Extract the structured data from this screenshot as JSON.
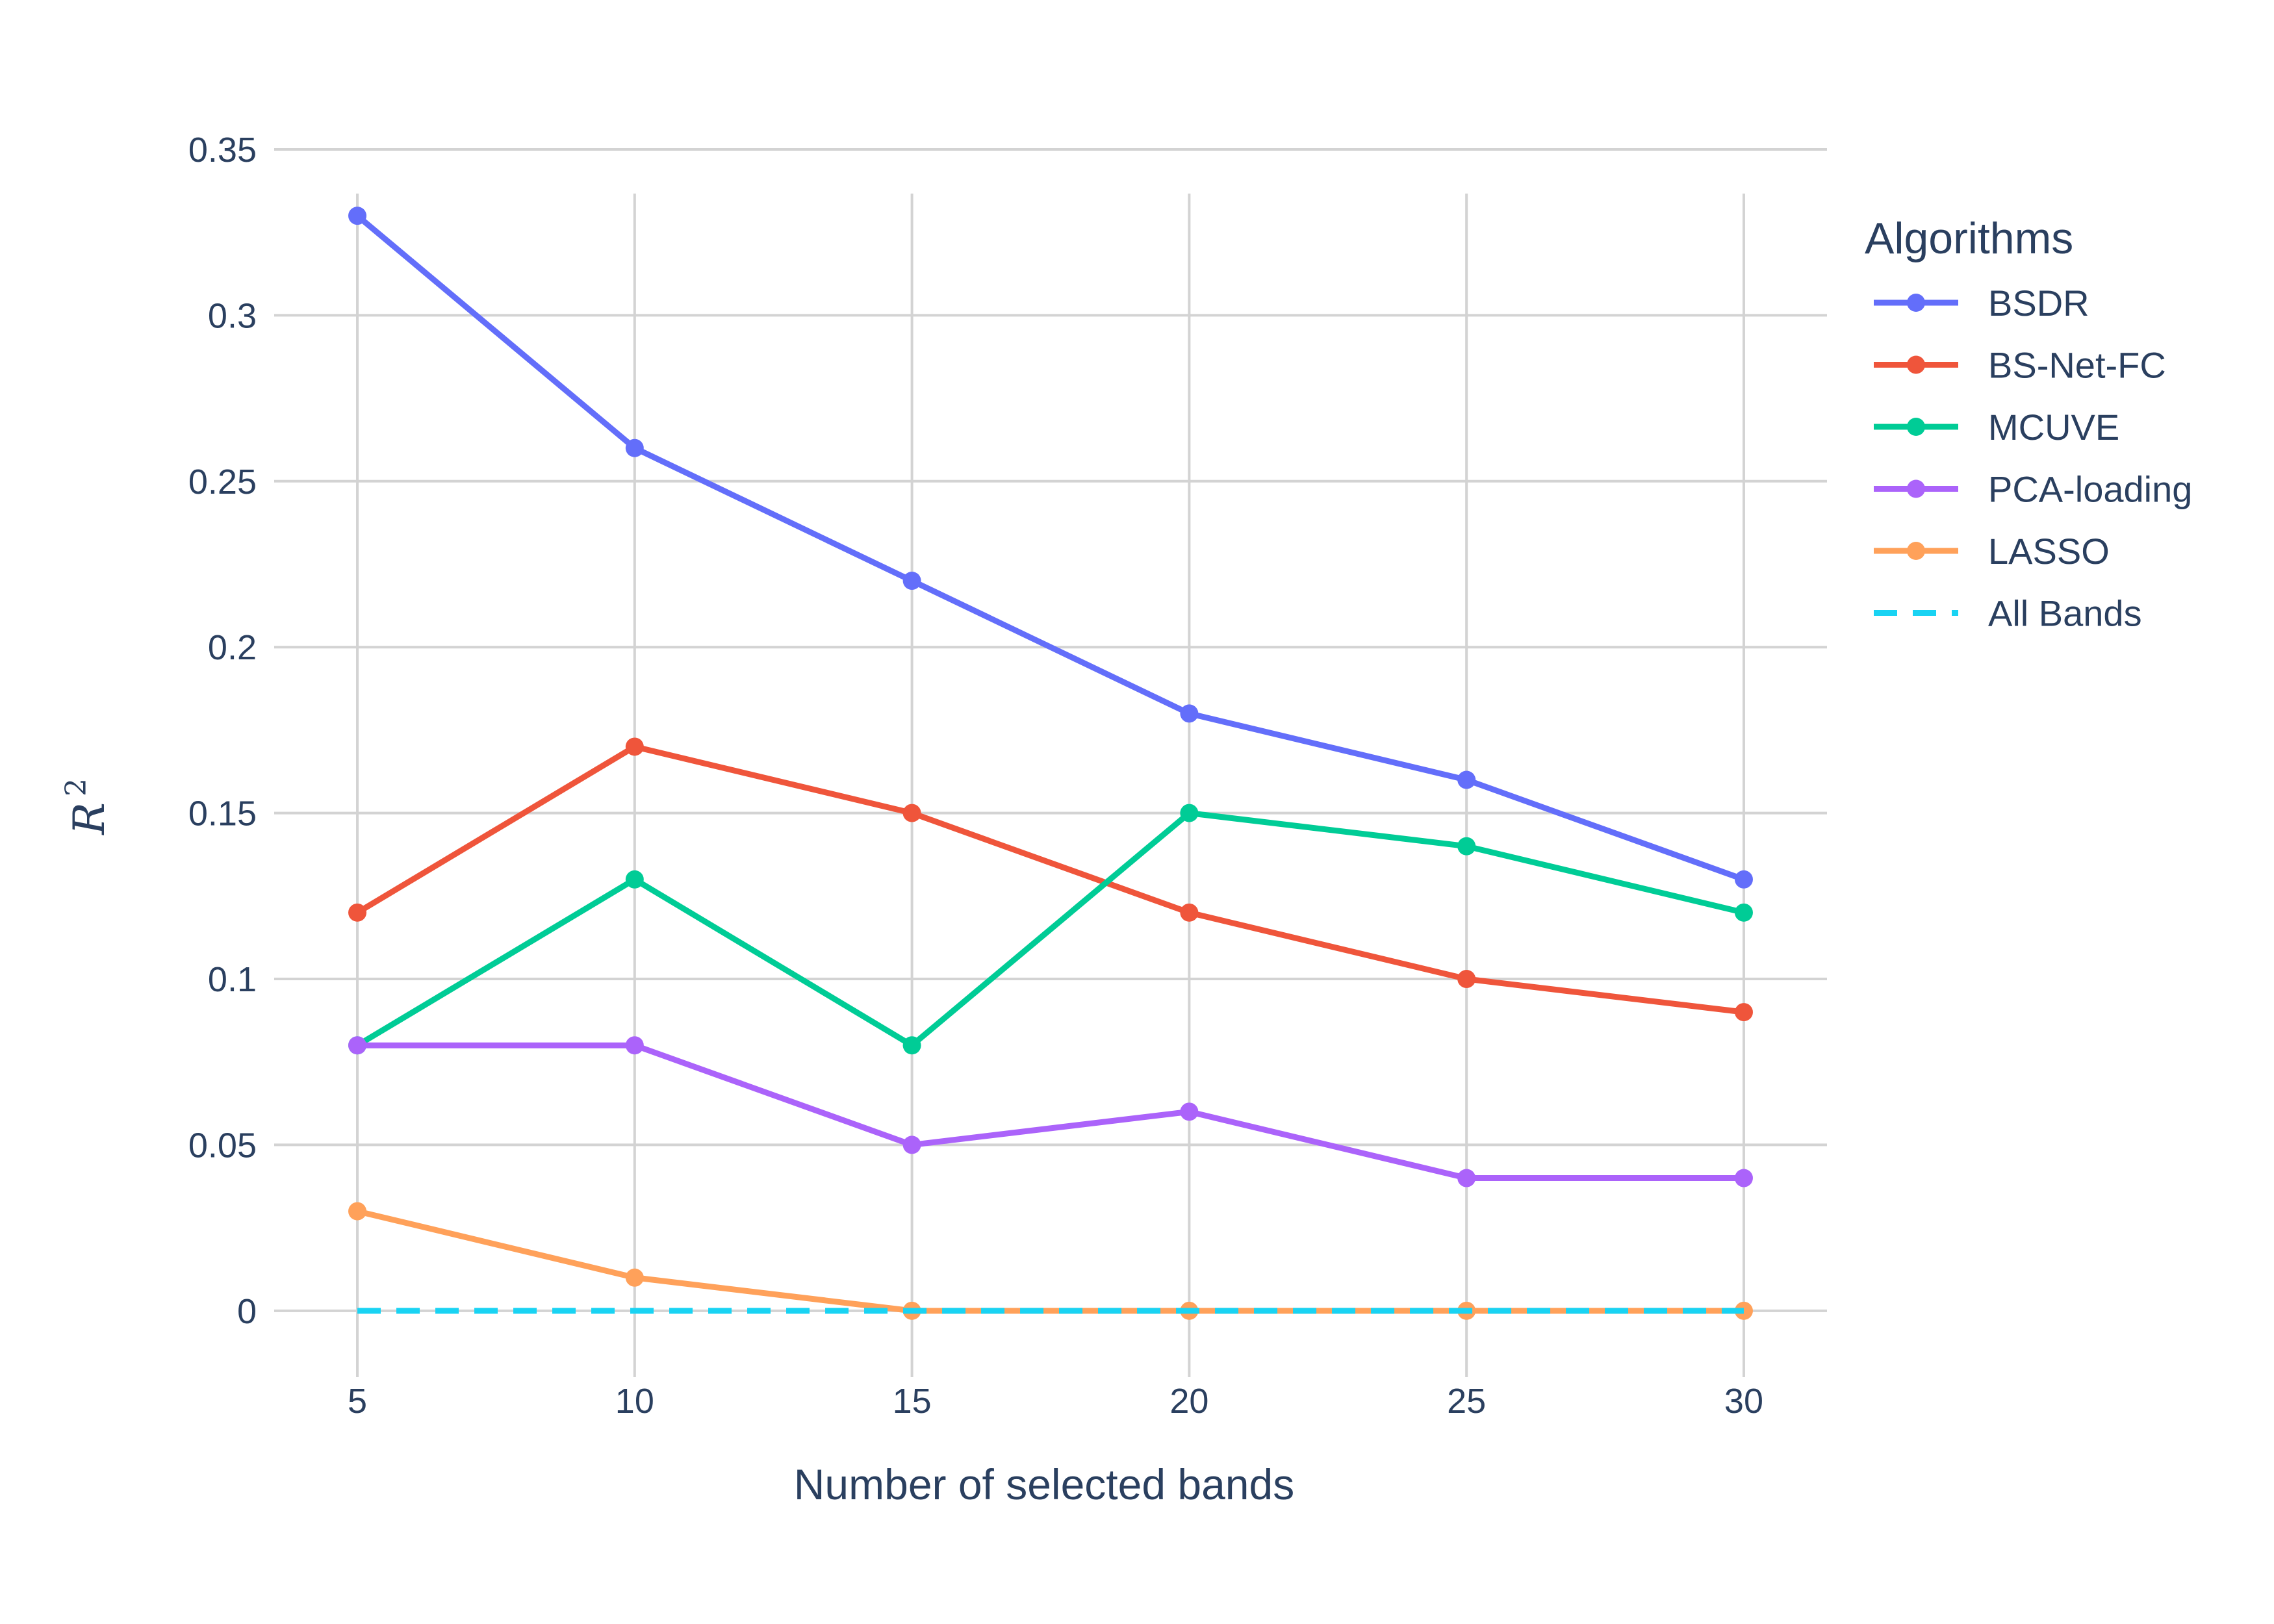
{
  "chart_data": {
    "type": "line",
    "x": [
      5,
      10,
      15,
      20,
      25,
      30
    ],
    "xlabel": "Number of selected bands",
    "ylabel": "R",
    "ylabel_superscript": "2",
    "xlim": [
      3.5,
      31.5
    ],
    "ylim": [
      -0.02,
      0.35
    ],
    "x_ticks": [
      5,
      10,
      15,
      20,
      25,
      30
    ],
    "x_tick_labels": [
      "5",
      "10",
      "15",
      "20",
      "25",
      "30"
    ],
    "y_ticks": [
      0,
      0.05,
      0.1,
      0.15,
      0.2,
      0.25,
      0.3,
      0.35
    ],
    "y_tick_labels": [
      "0",
      "0.05",
      "0.1",
      "0.15",
      "0.2",
      "0.25",
      "0.3",
      "0.35"
    ],
    "grid": true,
    "legend": {
      "title": "Algorithms",
      "placement": "top-right, outside plot"
    },
    "series": [
      {
        "name": "BSDR",
        "color": "#636efa",
        "style": "solid-markers",
        "values": [
          0.33,
          0.26,
          0.22,
          0.18,
          0.16,
          0.13
        ]
      },
      {
        "name": "BS-Net-FC",
        "color": "#ef553b",
        "style": "solid-markers",
        "values": [
          0.12,
          0.17,
          0.15,
          0.12,
          0.1,
          0.09
        ]
      },
      {
        "name": "MCUVE",
        "color": "#00cc96",
        "style": "solid-markers",
        "values": [
          0.08,
          0.13,
          0.08,
          0.15,
          0.14,
          0.12
        ]
      },
      {
        "name": "PCA-loading",
        "color": "#ab63fa",
        "style": "solid-markers",
        "values": [
          0.08,
          0.08,
          0.05,
          0.06,
          0.04,
          0.04
        ]
      },
      {
        "name": "LASSO",
        "color": "#ffa15a",
        "style": "solid-markers",
        "values": [
          0.03,
          0.01,
          0.0,
          0.0,
          0.0,
          0.0
        ]
      },
      {
        "name": "All Bands",
        "color": "#19d3f3",
        "style": "dashed",
        "values": [
          0.0,
          0.0,
          0.0,
          0.0,
          0.0,
          0.0
        ]
      }
    ]
  }
}
